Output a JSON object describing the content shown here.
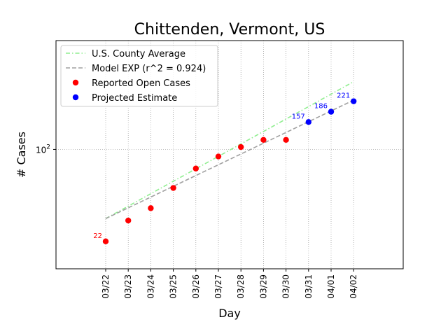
{
  "chart_data": {
    "type": "scatter",
    "title": "Chittenden, Vermont, US",
    "xlabel": "Day",
    "ylabel": "# Cases",
    "yscale": "log",
    "ylim": [
      14,
      600
    ],
    "categories": [
      "03/22",
      "03/23",
      "03/24",
      "03/25",
      "03/26",
      "03/27",
      "03/28",
      "03/29",
      "03/30",
      "03/31",
      "04/01",
      "04/02"
    ],
    "y_ticks": [
      {
        "value": 100,
        "base": "10",
        "exp": "2"
      }
    ],
    "grid": true,
    "legend_position": "top-left",
    "series": [
      {
        "name": "U.S. County Average",
        "kind": "line",
        "style": "dashdot",
        "color": "#90ee90",
        "values": [
          32,
          null,
          null,
          null,
          null,
          null,
          null,
          null,
          null,
          null,
          null,
          305
        ]
      },
      {
        "name": "Model EXP (r^2 = 0.924)",
        "kind": "line",
        "style": "dashed",
        "color": "#a0a0a0",
        "values": [
          32,
          null,
          null,
          null,
          null,
          null,
          null,
          null,
          null,
          null,
          null,
          225
        ]
      },
      {
        "name": "Reported Open Cases",
        "kind": "points",
        "color": "#ff0000",
        "values": [
          22,
          31,
          38,
          53,
          73,
          89,
          104,
          117,
          117,
          null,
          null,
          null
        ]
      },
      {
        "name": "Projected Estimate",
        "kind": "points",
        "color": "#0000ff",
        "values": [
          null,
          null,
          null,
          null,
          null,
          null,
          null,
          null,
          null,
          157,
          186,
          221
        ]
      }
    ],
    "annotations": [
      {
        "text": "22",
        "x": "03/22",
        "y": 22,
        "color": "#ff0000"
      },
      {
        "text": "157",
        "x": "03/31",
        "y": 157,
        "color": "#0000ff"
      },
      {
        "text": "186",
        "x": "04/01",
        "y": 186,
        "color": "#0000ff"
      },
      {
        "text": "221",
        "x": "04/02",
        "y": 221,
        "color": "#0000ff"
      }
    ]
  }
}
